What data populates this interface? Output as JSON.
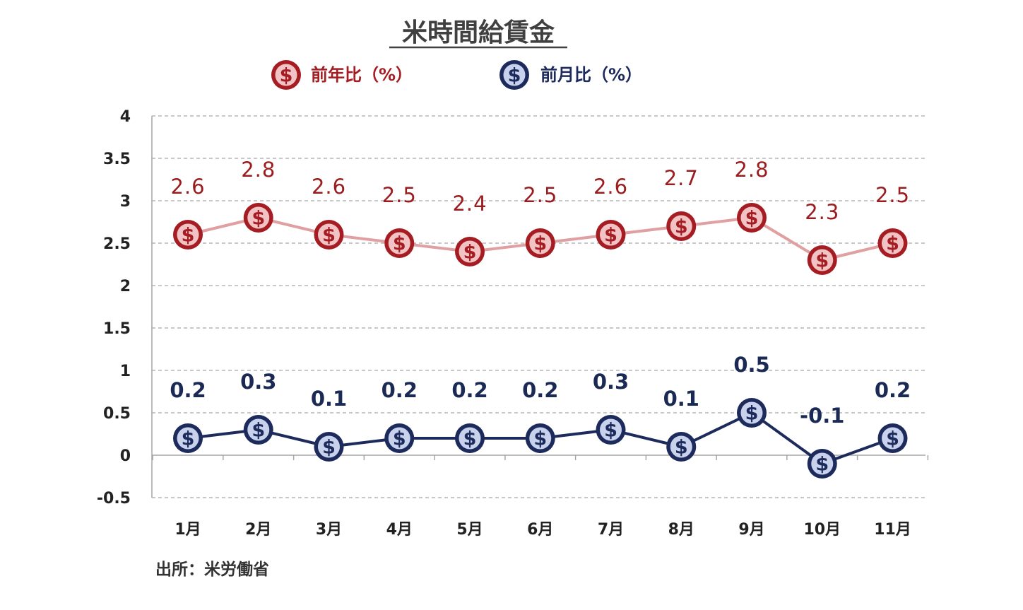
{
  "chart_data": {
    "type": "line",
    "title": "米時間給賃金",
    "categories": [
      "1月",
      "2月",
      "3月",
      "4月",
      "5月",
      "6月",
      "7月",
      "8月",
      "9月",
      "10月",
      "11月"
    ],
    "series": [
      {
        "name": "前年比（%）",
        "values": [
          2.6,
          2.8,
          2.6,
          2.5,
          2.4,
          2.5,
          2.6,
          2.7,
          2.8,
          2.3,
          2.5
        ],
        "labels": [
          "2.6",
          "2.8",
          "2.6",
          "2.5",
          "2.4",
          "2.5",
          "2.6",
          "2.7",
          "2.8",
          "2.3",
          "2.5"
        ],
        "line_color": "#e0a0a2",
        "marker_outer": "#a51d22",
        "marker_inner": "#f2c3c4",
        "glyph_color": "#a51d22"
      },
      {
        "name": "前月比（%）",
        "values": [
          0.2,
          0.3,
          0.1,
          0.2,
          0.2,
          0.2,
          0.3,
          0.1,
          0.5,
          -0.1,
          0.2
        ],
        "labels": [
          "0.2",
          "0.3",
          "0.1",
          "0.2",
          "0.2",
          "0.2",
          "0.3",
          "0.1",
          "0.5",
          "-0.1",
          "0.2"
        ],
        "line_color": "#1c2b5c",
        "marker_outer": "#1c2b5c",
        "marker_inner": "#c9d2ec",
        "glyph_color": "#1c2b5c"
      }
    ],
    "ylim": [
      -0.5,
      4
    ],
    "yticks": [
      "4",
      "3.5",
      "3",
      "2.5",
      "2",
      "1.5",
      "1",
      "0.5",
      "0",
      "-0.5"
    ],
    "ytick_values": [
      4,
      3.5,
      3,
      2.5,
      2,
      1.5,
      1,
      0.5,
      0,
      -0.5
    ],
    "xlabel": "",
    "ylabel": "",
    "grid": true,
    "legend_position": "top",
    "marker_icon": "dollar-coin-icon",
    "source": "出所：米労働省"
  }
}
